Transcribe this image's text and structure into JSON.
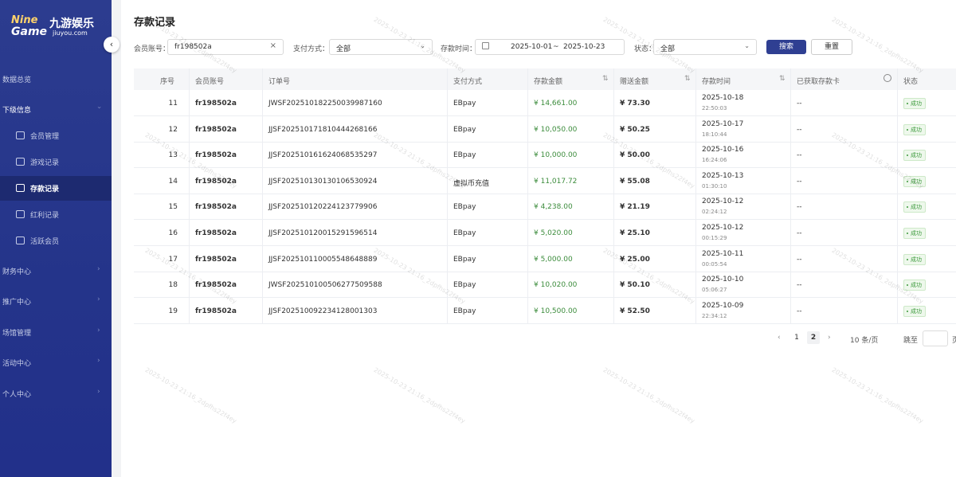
{
  "sidebar": {
    "logo": {
      "brand": "Nine",
      "game": "Game",
      "name": "九游娱乐",
      "domain": "jiuyou.com"
    },
    "menu": [
      {
        "label": "数据总览"
      },
      {
        "label": "下级信息",
        "children": [
          "会员管理",
          "游戏记录",
          "存款记录",
          "红利记录",
          "活跃会员"
        ]
      },
      {
        "label": "财务中心"
      },
      {
        "label": "推广中心"
      },
      {
        "label": "场馆管理"
      },
      {
        "label": "活动中心"
      },
      {
        "label": "个人中心"
      }
    ]
  },
  "header": {
    "title": "存款记录"
  },
  "filters": {
    "account_label": "会员账号：",
    "account_value": "fr198502a",
    "method_label": "支付方式：",
    "method_value": "全部",
    "time_label": "存款时间：",
    "time_start": "2025-10-01",
    "time_sep": "~",
    "time_end": "2025-10-23",
    "status_label": "状态：",
    "status_value": "全部",
    "search": "搜索",
    "reset": "重置"
  },
  "table": {
    "columns": [
      "序号",
      "会员账号",
      "订单号",
      "支付方式",
      "存款金额",
      "赠送金额",
      "存款时间",
      "已获取存款卡",
      "状态"
    ],
    "rows": [
      [
        11,
        "fr198502a",
        "JWSF202510182250039987160",
        "EBpay",
        "¥ 14,661.00",
        "¥ 73.30",
        "2025-10-18",
        "22:50:03",
        "--",
        "成功"
      ],
      [
        12,
        "fr198502a",
        "JJSF202510171810444268166",
        "EBpay",
        "¥ 10,050.00",
        "¥ 50.25",
        "2025-10-17",
        "18:10:44",
        "--",
        "成功"
      ],
      [
        13,
        "fr198502a",
        "JJSF202510161624068535297",
        "EBpay",
        "¥ 10,000.00",
        "¥ 50.00",
        "2025-10-16",
        "16:24:06",
        "--",
        "成功"
      ],
      [
        14,
        "fr198502a",
        "JJSF202510130130106530924",
        "虚拟币充值",
        "¥ 11,017.72",
        "¥ 55.08",
        "2025-10-13",
        "01:30:10",
        "--",
        "成功"
      ],
      [
        15,
        "fr198502a",
        "JJSF202510120224123779906",
        "EBpay",
        "¥ 4,238.00",
        "¥ 21.19",
        "2025-10-12",
        "02:24:12",
        "--",
        "成功"
      ],
      [
        16,
        "fr198502a",
        "JJSF202510120015291596514",
        "EBpay",
        "¥ 5,020.00",
        "¥ 25.10",
        "2025-10-12",
        "00:15:29",
        "--",
        "成功"
      ],
      [
        17,
        "fr198502a",
        "JJSF202510110005548648889",
        "EBpay",
        "¥ 5,000.00",
        "¥ 25.00",
        "2025-10-11",
        "00:05:54",
        "--",
        "成功"
      ],
      [
        18,
        "fr198502a",
        "JWSF202510100506277509588",
        "EBpay",
        "¥ 10,020.00",
        "¥ 50.10",
        "2025-10-10",
        "05:06:27",
        "--",
        "成功"
      ],
      [
        19,
        "fr198502a",
        "JJSF202510092234128001303",
        "EBpay",
        "¥ 10,500.00",
        "¥ 52.50",
        "2025-10-09",
        "22:34:12",
        "--",
        "成功"
      ]
    ]
  },
  "pagination": {
    "pages": [
      "1",
      "2"
    ],
    "page_size": "10 条/页",
    "jump_label": "跳至",
    "jump_suffix": "页"
  },
  "watermark": "2025-10-23 21:16_2dpfhs22f4ey"
}
